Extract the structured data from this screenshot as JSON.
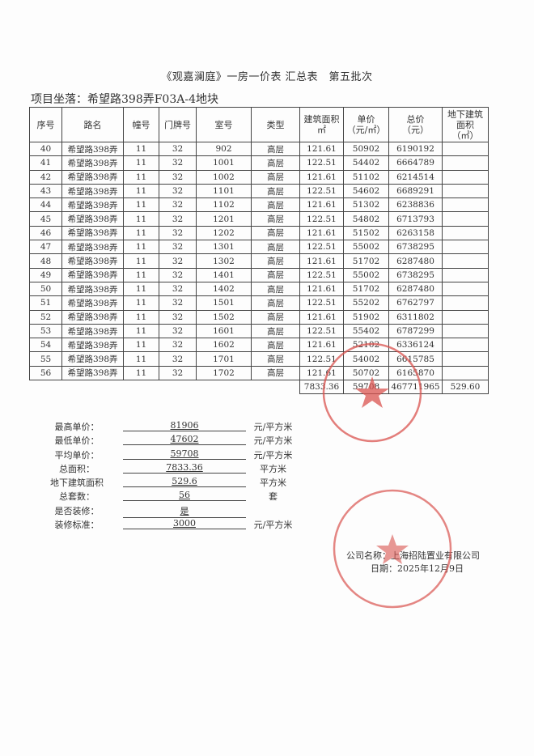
{
  "title": "《观嘉澜庭》一房一价表 汇总表　第五批次",
  "location": "项目坐落：希望路398弄F03A-4地块",
  "headers": [
    "序号",
    "路名",
    "幢号",
    "门牌号",
    "室号",
    "类型",
    "建筑面积\n㎡",
    "单价\n（元/㎡）",
    "总价\n（元）",
    "地下建筑\n面积\n（㎡）"
  ],
  "rows": [
    [
      "40",
      "希望路398弄",
      "11",
      "32",
      "902",
      "高层",
      "121.61",
      "50902",
      "6190192",
      ""
    ],
    [
      "41",
      "希望路398弄",
      "11",
      "32",
      "1001",
      "高层",
      "122.51",
      "54402",
      "6664789",
      ""
    ],
    [
      "42",
      "希望路398弄",
      "11",
      "32",
      "1002",
      "高层",
      "121.61",
      "51102",
      "6214514",
      ""
    ],
    [
      "43",
      "希望路398弄",
      "11",
      "32",
      "1101",
      "高层",
      "122.51",
      "54602",
      "6689291",
      ""
    ],
    [
      "44",
      "希望路398弄",
      "11",
      "32",
      "1102",
      "高层",
      "121.61",
      "51302",
      "6238836",
      ""
    ],
    [
      "45",
      "希望路398弄",
      "11",
      "32",
      "1201",
      "高层",
      "122.51",
      "54802",
      "6713793",
      ""
    ],
    [
      "46",
      "希望路398弄",
      "11",
      "32",
      "1202",
      "高层",
      "121.61",
      "51502",
      "6263158",
      ""
    ],
    [
      "47",
      "希望路398弄",
      "11",
      "32",
      "1301",
      "高层",
      "122.51",
      "55002",
      "6738295",
      ""
    ],
    [
      "48",
      "希望路398弄",
      "11",
      "32",
      "1302",
      "高层",
      "121.61",
      "51702",
      "6287480",
      ""
    ],
    [
      "49",
      "希望路398弄",
      "11",
      "32",
      "1401",
      "高层",
      "122.51",
      "55002",
      "6738295",
      ""
    ],
    [
      "50",
      "希望路398弄",
      "11",
      "32",
      "1402",
      "高层",
      "121.61",
      "51702",
      "6287480",
      ""
    ],
    [
      "51",
      "希望路398弄",
      "11",
      "32",
      "1501",
      "高层",
      "122.51",
      "55202",
      "6762797",
      ""
    ],
    [
      "52",
      "希望路398弄",
      "11",
      "32",
      "1502",
      "高层",
      "121.61",
      "51902",
      "6311802",
      ""
    ],
    [
      "53",
      "希望路398弄",
      "11",
      "32",
      "1601",
      "高层",
      "122.51",
      "55402",
      "6787299",
      ""
    ],
    [
      "54",
      "希望路398弄",
      "11",
      "32",
      "1602",
      "高层",
      "121.61",
      "52102",
      "6336124",
      ""
    ],
    [
      "55",
      "希望路398弄",
      "11",
      "32",
      "1701",
      "高层",
      "122.51",
      "54002",
      "6615785",
      ""
    ],
    [
      "56",
      "希望路398弄",
      "11",
      "32",
      "1702",
      "高层",
      "121.61",
      "50702",
      "6165870",
      ""
    ]
  ],
  "totals": [
    "",
    "",
    "",
    "",
    "",
    "",
    "7833.36",
    "59708",
    "467711965",
    "529.60"
  ],
  "summary": [
    {
      "label": "最高单价：",
      "value": "81906",
      "unit": "元/平方米"
    },
    {
      "label": "最低单价：",
      "value": "47602",
      "unit": "元/平方米"
    },
    {
      "label": "平均单价：",
      "value": "59708",
      "unit": "元/平方米"
    },
    {
      "label": "总面积：",
      "value": "7833.36",
      "unit": "平方米"
    },
    {
      "label": "地下建筑面积",
      "value": "529.6",
      "unit": "平方米"
    },
    {
      "label": "总套数：",
      "value": "56",
      "unit": "套"
    },
    {
      "label": "是否装修：",
      "value": "是",
      "unit": ""
    },
    {
      "label": "装修标准：",
      "value": "3000",
      "unit": "元/平方米"
    }
  ],
  "company": "公司名称：上海招陆置业有限公司",
  "date": "日期：2025年12月9日",
  "stamp_color": "#d9534f",
  "stamp_text": "上海招陆置业有限公司"
}
